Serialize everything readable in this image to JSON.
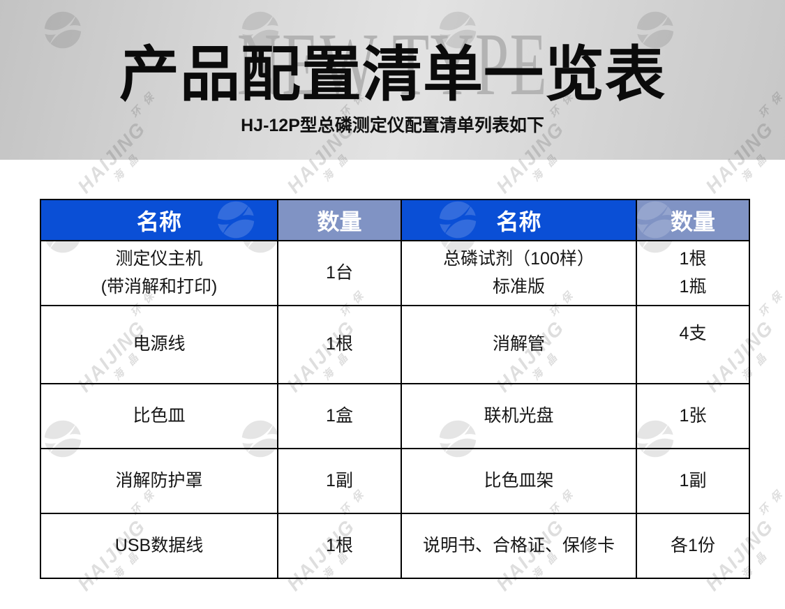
{
  "page": {
    "hero": {
      "backdrop_text": "NEW TYPE",
      "title": "产品配置清单一览表",
      "subtitle": "HJ-12P型总磷测定仪配置清单列表如下"
    },
    "watermark": {
      "brand_latin": "HAIJING",
      "brand_cjk_a": "海晶",
      "brand_cjk_b": "环保",
      "logo_icon": "haijing-swoosh-logo"
    },
    "colors": {
      "header_primary_blue": "#0a4fd6",
      "header_secondary_blue_gray": "#8093c4",
      "table_border": "#000000",
      "backdrop_text_gray": "#b3b3b3"
    }
  },
  "table": {
    "columns": [
      {
        "label": "名称",
        "type": "name"
      },
      {
        "label": "数量",
        "type": "qty"
      },
      {
        "label": "名称",
        "type": "name"
      },
      {
        "label": "数量",
        "type": "qty"
      }
    ],
    "rows": [
      {
        "cells": [
          [
            "测定仪主机",
            "(带消解和打印)"
          ],
          [
            "1台"
          ],
          [
            "总磷试剂（100样）",
            "标准版"
          ],
          [
            "1根",
            "1瓶"
          ]
        ]
      },
      {
        "cells": [
          [
            "电源线"
          ],
          [
            "1根"
          ],
          [
            "消解管"
          ],
          {
            "lines": [
              "4支"
            ],
            "valign": "top"
          }
        ]
      },
      {
        "cells": [
          [
            "比色皿"
          ],
          [
            "1盒"
          ],
          [
            "联机光盘"
          ],
          [
            "1张"
          ]
        ]
      },
      {
        "cells": [
          [
            "消解防护罩"
          ],
          [
            "1副"
          ],
          [
            "比色皿架"
          ],
          [
            "1副"
          ]
        ]
      },
      {
        "cells": [
          [
            "USB数据线"
          ],
          [
            "1根"
          ],
          [
            "说明书、合格证、保修卡"
          ],
          [
            "各1份"
          ]
        ]
      }
    ]
  }
}
